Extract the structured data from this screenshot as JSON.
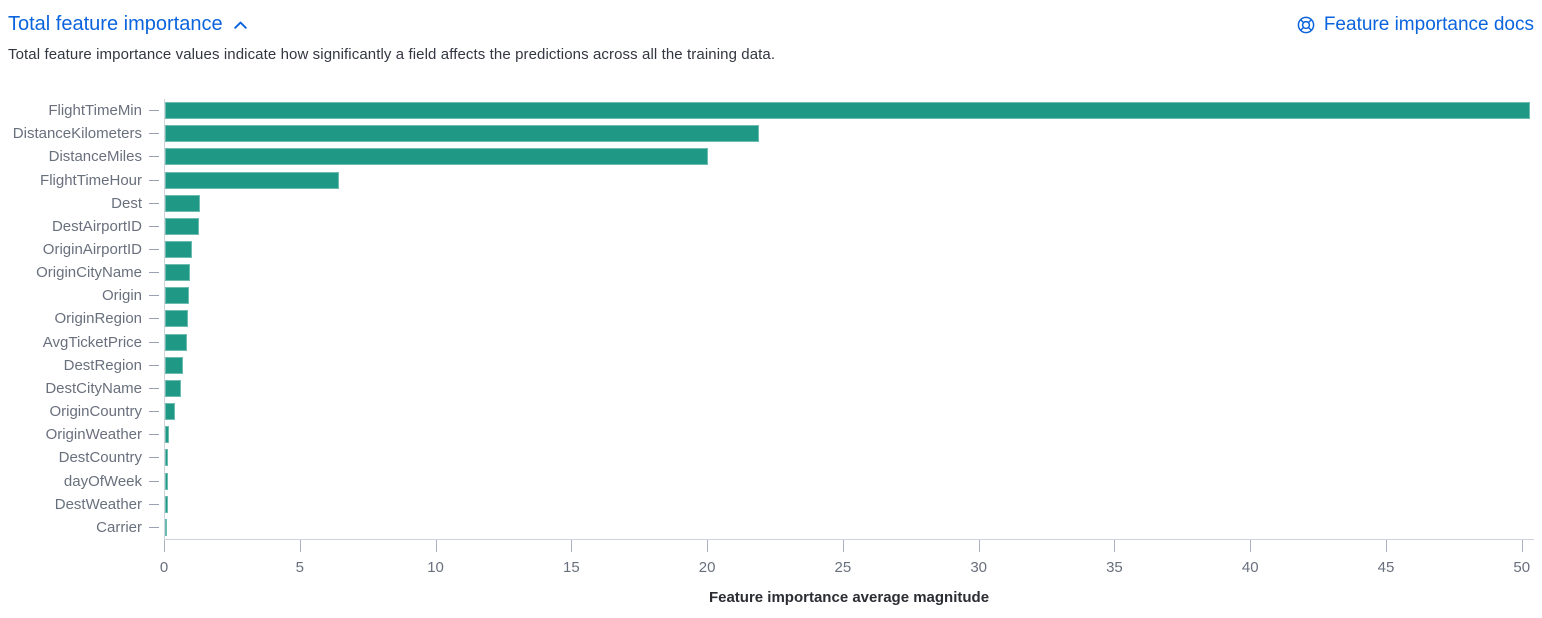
{
  "header": {
    "title": "Total feature importance",
    "docs_link_label": "Feature importance docs"
  },
  "description": "Total feature importance values indicate how significantly a field affects the predictions across all the training data.",
  "colors": {
    "link_blue": "#0b64dd",
    "bar_teal": "#209886",
    "axis_line": "#cfd3dc",
    "muted_text": "#69707d",
    "body_text": "#343741"
  },
  "icons": {
    "collapse": "chevron-up-icon",
    "docs": "help-lifering-icon"
  },
  "chart_data": {
    "type": "bar",
    "orientation": "horizontal",
    "title": "Total feature importance",
    "xlabel": "Feature importance average magnitude",
    "ylabel": "",
    "categories": [
      "FlightTimeMin",
      "DistanceKilometers",
      "DistanceMiles",
      "FlightTimeHour",
      "Dest",
      "DestAirportID",
      "OriginAirportID",
      "OriginCityName",
      "Origin",
      "OriginRegion",
      "AvgTicketPrice",
      "DestRegion",
      "DestCityName",
      "OriginCountry",
      "OriginWeather",
      "DestCountry",
      "dayOfWeek",
      "DestWeather",
      "Carrier"
    ],
    "values": [
      50.3,
      21.9,
      20.0,
      6.4,
      1.3,
      1.25,
      1.0,
      0.92,
      0.9,
      0.85,
      0.8,
      0.66,
      0.58,
      0.36,
      0.15,
      0.12,
      0.12,
      0.1,
      0.02
    ],
    "xticks": [
      0,
      5,
      10,
      15,
      20,
      25,
      30,
      35,
      40,
      45,
      50
    ],
    "xlim": [
      0,
      50.45
    ],
    "grid": false,
    "legend": false
  }
}
